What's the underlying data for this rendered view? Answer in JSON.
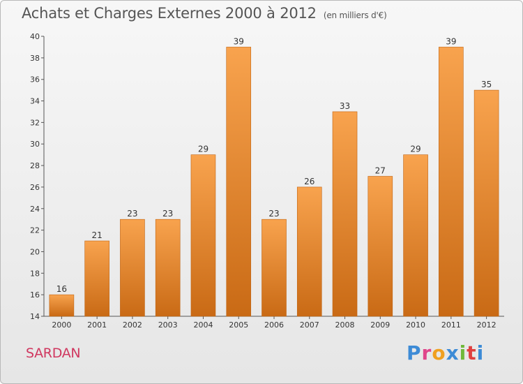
{
  "header": {
    "title": "Achats et Charges Externes 2000 à 2012",
    "unit": "(en milliers d'€)"
  },
  "footer": {
    "commune": "SARDAN",
    "logo_text": "Proxiti"
  },
  "colors": {
    "bar_light": "#f8a34e",
    "bar_dark": "#c96a15",
    "commune": "#d0375f",
    "logo": [
      "#3d8bd6",
      "#e0458a",
      "#f0a020",
      "#3d8bd6",
      "#70b83a",
      "#e04040",
      "#3d8bd6"
    ]
  },
  "chart_data": {
    "type": "bar",
    "title": "Achats et Charges Externes 2000 à 2012",
    "subtitle": "(en milliers d'€)",
    "xlabel": "",
    "ylabel": "",
    "categories": [
      "2000",
      "2001",
      "2002",
      "2003",
      "2004",
      "2005",
      "2006",
      "2007",
      "2008",
      "2009",
      "2010",
      "2011",
      "2012"
    ],
    "values": [
      16,
      21,
      23,
      23,
      29,
      39,
      23,
      26,
      33,
      27,
      29,
      39,
      35
    ],
    "ylim": [
      14,
      40
    ],
    "yticks": [
      14,
      16,
      18,
      20,
      22,
      24,
      26,
      28,
      30,
      32,
      34,
      36,
      38,
      40
    ],
    "grid": false,
    "legend": "none"
  }
}
